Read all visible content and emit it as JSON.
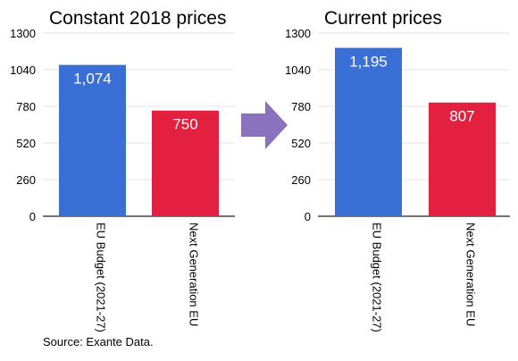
{
  "chart_data": [
    {
      "type": "bar",
      "title": "Constant 2018 prices",
      "categories": [
        "EU Budget (2021-27)",
        "Next Generation EU"
      ],
      "values": [
        1074,
        750
      ],
      "value_labels": [
        "1,074",
        "750"
      ],
      "ylim": [
        0,
        1300
      ],
      "yticks": [
        "0",
        "260",
        "520",
        "780",
        "1040",
        "1300"
      ],
      "colors": [
        "#3a6fd6",
        "#e3203f"
      ],
      "grid": true
    },
    {
      "type": "bar",
      "title": "Current prices",
      "categories": [
        "EU Budget (2021-27)",
        "Next Generation EU"
      ],
      "values": [
        1195,
        807
      ],
      "value_labels": [
        "1,195",
        "807"
      ],
      "ylim": [
        0,
        1300
      ],
      "yticks": [
        "0",
        "260",
        "520",
        "780",
        "1040",
        "1300"
      ],
      "colors": [
        "#3a6fd6",
        "#e3203f"
      ],
      "grid": true
    }
  ],
  "arrow": {
    "icon": "right-arrow-icon",
    "color": "#8a72bf"
  },
  "source": "Source: Exante Data."
}
